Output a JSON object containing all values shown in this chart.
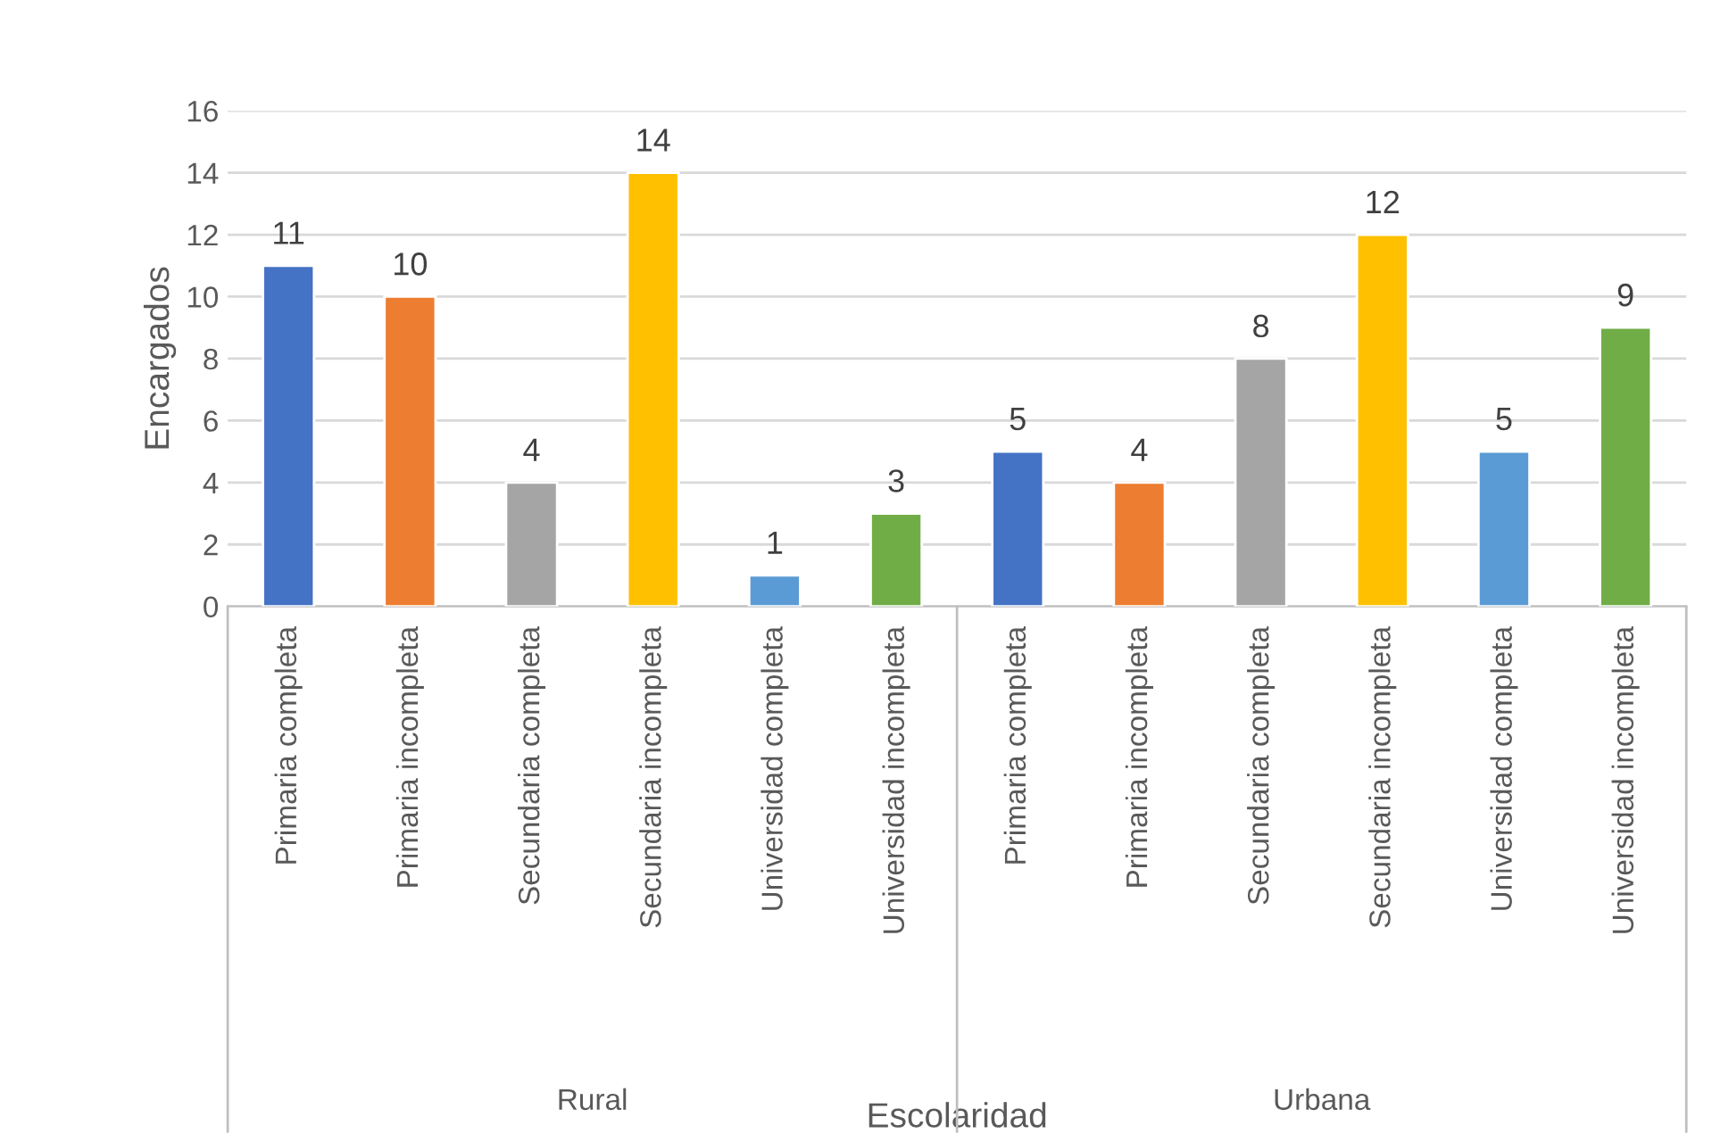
{
  "chart_data": {
    "type": "bar",
    "xlabel": "Escolaridad",
    "ylabel": "Encargados",
    "categories": [
      "Primaria completa",
      "Primaria incompleta",
      "Secundaria completa",
      "Secundaria incompleta",
      "Universidad completa",
      "Universidad incompleta",
      "Primaria completa",
      "Primaria incompleta",
      "Secundaria completa",
      "Secundaria incompleta",
      "Universidad completa",
      "Universidad incompleta"
    ],
    "values": [
      11,
      10,
      4,
      14,
      1,
      3,
      5,
      4,
      8,
      12,
      5,
      9
    ],
    "colors": [
      "#4472c4",
      "#ed7d31",
      "#a5a5a5",
      "#ffc000",
      "#5b9bd5",
      "#70ad47",
      "#4472c4",
      "#ed7d31",
      "#a5a5a5",
      "#ffc000",
      "#5b9bd5",
      "#70ad47"
    ],
    "annotations": [
      "Rural",
      "Urbana"
    ],
    "ylim": [
      0,
      16
    ],
    "yticks": [
      0,
      2,
      4,
      6,
      8,
      10,
      12,
      14,
      16
    ],
    "grid": "y",
    "data_labels": true
  }
}
